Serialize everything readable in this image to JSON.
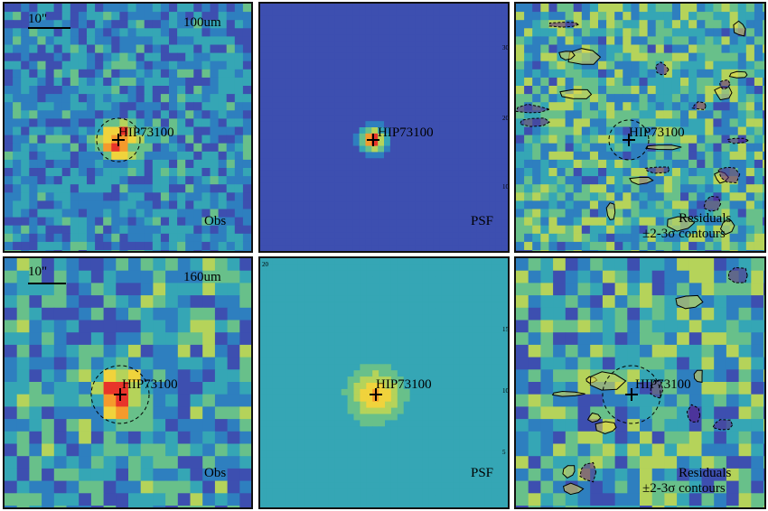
{
  "figure": {
    "source_name": "HIP73100",
    "rows": [
      {
        "band": "100um",
        "scale_label": "10\"",
        "panels": [
          {
            "kind": "obs",
            "corner_label": "Obs",
            "band_label": "100um",
            "scale_label": "10\"",
            "source_label": "HIP73100",
            "background_color": "#2e7fbf"
          },
          {
            "kind": "psf",
            "corner_label": "PSF",
            "source_label": "HIP73100",
            "background_color": "#2f6fbf"
          },
          {
            "kind": "residual",
            "corner_label_1": "Residuals",
            "corner_label_2": "±2-3σ contours",
            "source_label": "HIP73100",
            "background_color": "#5aa6b0"
          }
        ]
      },
      {
        "band": "160um",
        "scale_label": "10\"",
        "panels": [
          {
            "kind": "obs",
            "corner_label": "Obs",
            "band_label": "160um",
            "scale_label": "10\"",
            "source_label": "HIP73100",
            "background_color": "#4a8fc0"
          },
          {
            "kind": "psf",
            "corner_label": "PSF",
            "source_label": "HIP73100",
            "background_color": "#4c9fb8"
          },
          {
            "kind": "residual",
            "corner_label_1": "Residuals",
            "corner_label_2": "±2-3σ contours",
            "source_label": "HIP73100",
            "background_color": "#4c9fb8"
          }
        ]
      }
    ],
    "psf_axis_ticks_top": [
      "30",
      "20",
      "10"
    ],
    "psf_axis_ticks_bottom": [
      "20",
      "15",
      "10",
      "5"
    ],
    "colormap": [
      "#3b1f7a",
      "#3d4fb0",
      "#2e7fbf",
      "#35a6b5",
      "#68c08a",
      "#b5d35a",
      "#f0d33c",
      "#f59a2c",
      "#e8342a"
    ]
  }
}
